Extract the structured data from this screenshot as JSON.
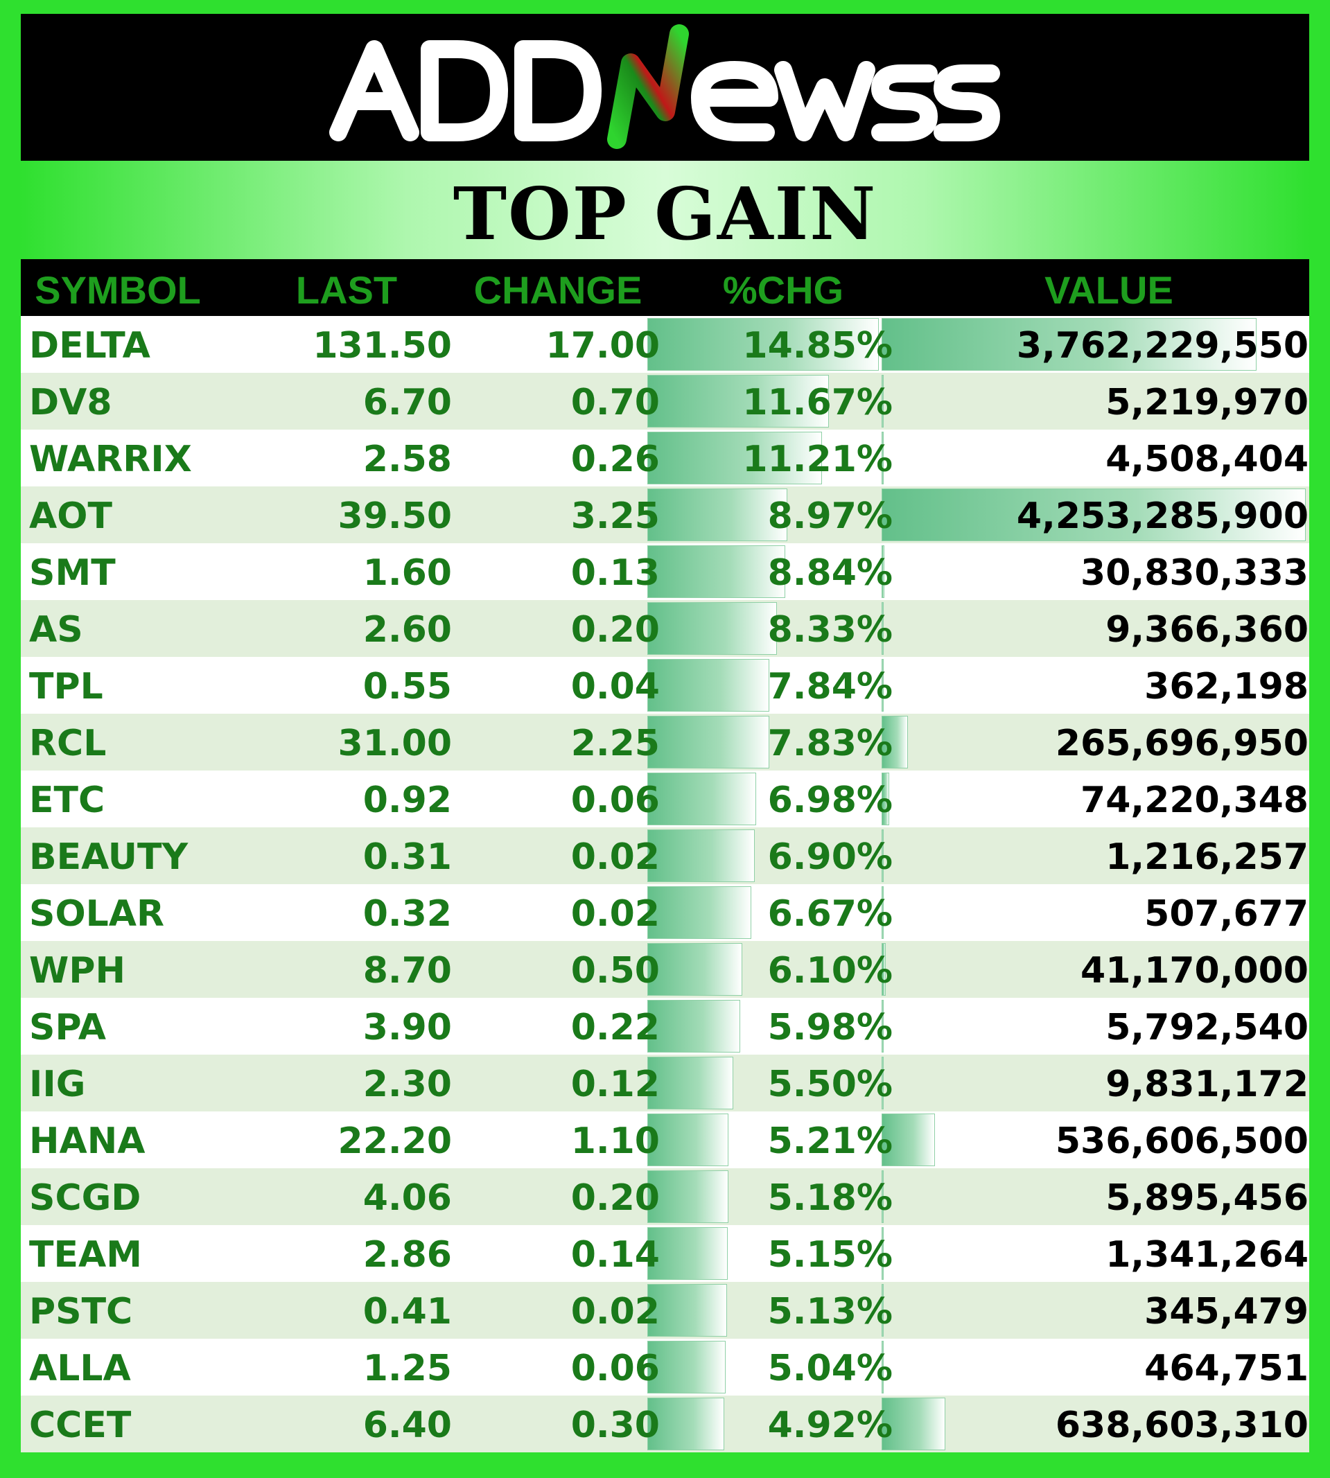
{
  "brand": {
    "name": "ADDNEWSS",
    "colors": {
      "frame": "#2fe02f",
      "header": "#000000",
      "text_green": "#1a7a1a",
      "bar_green": "#63c08a"
    }
  },
  "title": "TOP GAIN",
  "chart_data": {
    "type": "table",
    "title": "TOP GAIN",
    "columns": [
      "SYMBOL",
      "LAST",
      "CHANGE",
      "%CHG",
      "VALUE"
    ],
    "rows": [
      {
        "symbol": "DELTA",
        "last": "131.50",
        "change": "17.00",
        "pct": "14.85%",
        "value": "3,762,229,550"
      },
      {
        "symbol": "DV8",
        "last": "6.70",
        "change": "0.70",
        "pct": "11.67%",
        "value": "5,219,970"
      },
      {
        "symbol": "WARRIX",
        "last": "2.58",
        "change": "0.26",
        "pct": "11.21%",
        "value": "4,508,404"
      },
      {
        "symbol": "AOT",
        "last": "39.50",
        "change": "3.25",
        "pct": "8.97%",
        "value": "4,253,285,900"
      },
      {
        "symbol": "SMT",
        "last": "1.60",
        "change": "0.13",
        "pct": "8.84%",
        "value": "30,830,333"
      },
      {
        "symbol": "AS",
        "last": "2.60",
        "change": "0.20",
        "pct": "8.33%",
        "value": "9,366,360"
      },
      {
        "symbol": "TPL",
        "last": "0.55",
        "change": "0.04",
        "pct": "7.84%",
        "value": "362,198"
      },
      {
        "symbol": "RCL",
        "last": "31.00",
        "change": "2.25",
        "pct": "7.83%",
        "value": "265,696,950"
      },
      {
        "symbol": "ETC",
        "last": "0.92",
        "change": "0.06",
        "pct": "6.98%",
        "value": "74,220,348"
      },
      {
        "symbol": "BEAUTY",
        "last": "0.31",
        "change": "0.02",
        "pct": "6.90%",
        "value": "1,216,257"
      },
      {
        "symbol": "SOLAR",
        "last": "0.32",
        "change": "0.02",
        "pct": "6.67%",
        "value": "507,677"
      },
      {
        "symbol": "WPH",
        "last": "8.70",
        "change": "0.50",
        "pct": "6.10%",
        "value": "41,170,000"
      },
      {
        "symbol": "SPA",
        "last": "3.90",
        "change": "0.22",
        "pct": "5.98%",
        "value": "5,792,540"
      },
      {
        "symbol": "IIG",
        "last": "2.30",
        "change": "0.12",
        "pct": "5.50%",
        "value": "9,831,172"
      },
      {
        "symbol": "HANA",
        "last": "22.20",
        "change": "1.10",
        "pct": "5.21%",
        "value": "536,606,500"
      },
      {
        "symbol": "SCGD",
        "last": "4.06",
        "change": "0.20",
        "pct": "5.18%",
        "value": "5,895,456"
      },
      {
        "symbol": "TEAM",
        "last": "2.86",
        "change": "0.14",
        "pct": "5.15%",
        "value": "1,341,264"
      },
      {
        "symbol": "PSTC",
        "last": "0.41",
        "change": "0.02",
        "pct": "5.13%",
        "value": "345,479"
      },
      {
        "symbol": "ALLA",
        "last": "1.25",
        "change": "0.06",
        "pct": "5.04%",
        "value": "464,751"
      },
      {
        "symbol": "CCET",
        "last": "6.40",
        "change": "0.30",
        "pct": "4.92%",
        "value": "638,603,310"
      }
    ]
  }
}
